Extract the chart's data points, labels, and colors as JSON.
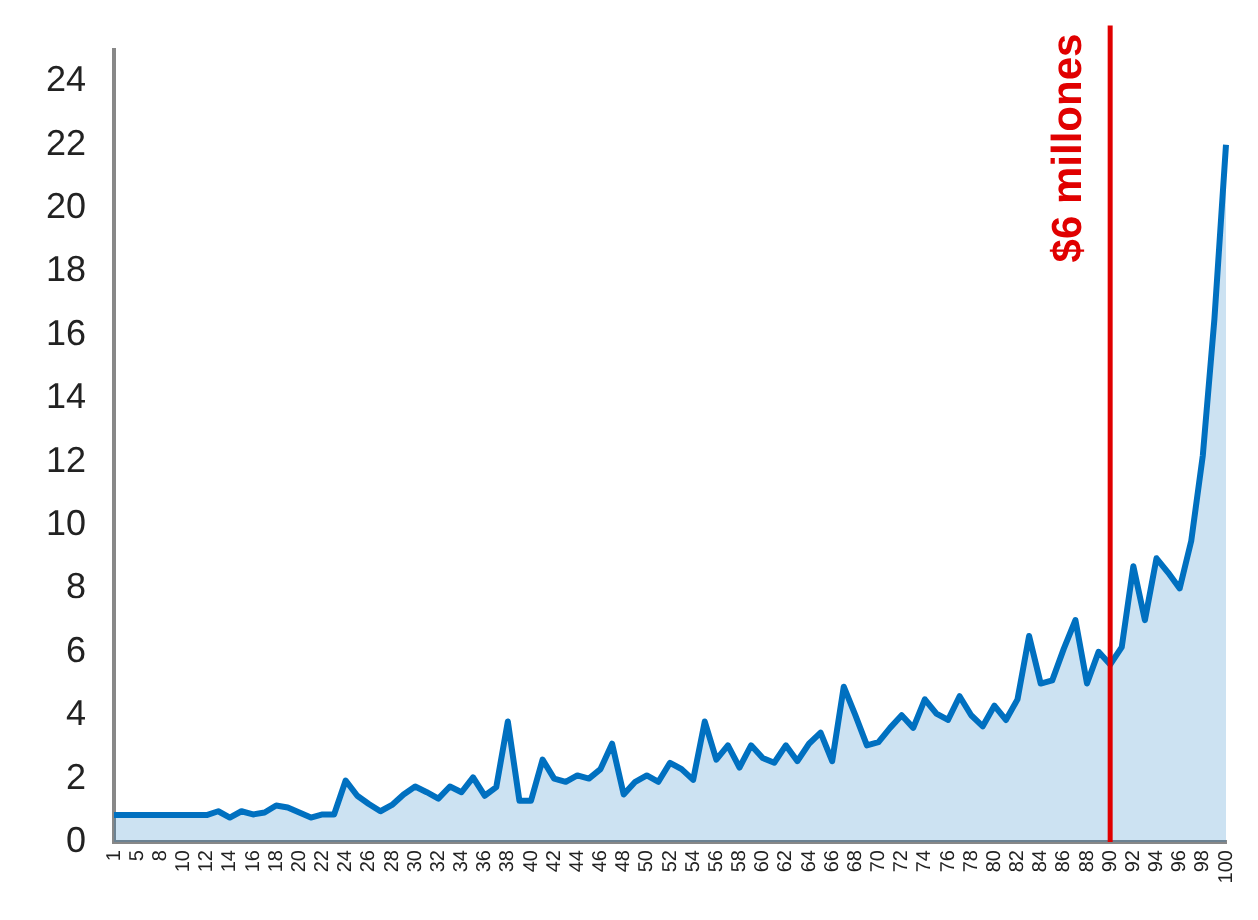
{
  "chart_data": {
    "type": "area",
    "categories": [
      "1",
      null,
      "5",
      null,
      "8",
      null,
      "10",
      null,
      "12",
      null,
      "14",
      null,
      "16",
      null,
      "18",
      null,
      "20",
      null,
      "22",
      null,
      "24",
      null,
      "26",
      null,
      "28",
      null,
      "30",
      null,
      "32",
      null,
      "34",
      null,
      "36",
      null,
      "38",
      null,
      "40",
      null,
      "42",
      null,
      "44",
      null,
      "46",
      null,
      "48",
      null,
      "50",
      null,
      "52",
      null,
      "54",
      null,
      "56",
      null,
      "58",
      null,
      "60",
      null,
      "62",
      null,
      "64",
      null,
      "66",
      null,
      "68",
      null,
      "70",
      null,
      "72",
      null,
      "74",
      null,
      "76",
      null,
      "78",
      null,
      "80",
      null,
      "82",
      null,
      "84",
      null,
      "86",
      null,
      "88",
      null,
      "90",
      null,
      "92",
      null,
      "94",
      null,
      "96",
      null,
      "98",
      null,
      "100"
    ],
    "series": [
      {
        "color": "#0070c0",
        "values": [
          0.85,
          0.85,
          0.85,
          0.85,
          0.85,
          0.85,
          0.85,
          0.85,
          0.85,
          0.97,
          0.77,
          0.97,
          0.87,
          0.93,
          1.15,
          1.09,
          0.93,
          0.77,
          0.87,
          0.87,
          1.94,
          1.46,
          1.2,
          0.97,
          1.17,
          1.5,
          1.75,
          1.57,
          1.37,
          1.75,
          1.57,
          2.04,
          1.46,
          1.73,
          3.8,
          1.3,
          1.3,
          2.6,
          2.0,
          1.9,
          2.1,
          2.0,
          2.3,
          3.1,
          1.5,
          1.9,
          2.1,
          1.9,
          2.5,
          2.3,
          1.96,
          3.8,
          2.6,
          3.05,
          2.35,
          3.05,
          2.65,
          2.5,
          3.05,
          2.55,
          3.1,
          3.45,
          2.55,
          4.9,
          4.0,
          3.05,
          3.15,
          3.6,
          4.0,
          3.6,
          4.5,
          4.05,
          3.85,
          4.6,
          4.0,
          3.65,
          4.3,
          3.85,
          4.5,
          6.5,
          5.0,
          5.1,
          6.1,
          7.0,
          5.0,
          6.0,
          5.6,
          6.15,
          8.7,
          7.0,
          8.95,
          8.5,
          8.0,
          9.5,
          12.2,
          16.5,
          22.0
        ]
      }
    ],
    "ylim": [
      0,
      25
    ],
    "yticks": [
      0,
      2,
      4,
      6,
      8,
      10,
      12,
      14,
      16,
      18,
      20,
      22,
      24
    ],
    "grid": false,
    "legend": false,
    "ref_lines": [
      {
        "axis": "x",
        "value": "90",
        "label": "$6 millones",
        "color": "#e00000"
      }
    ]
  }
}
